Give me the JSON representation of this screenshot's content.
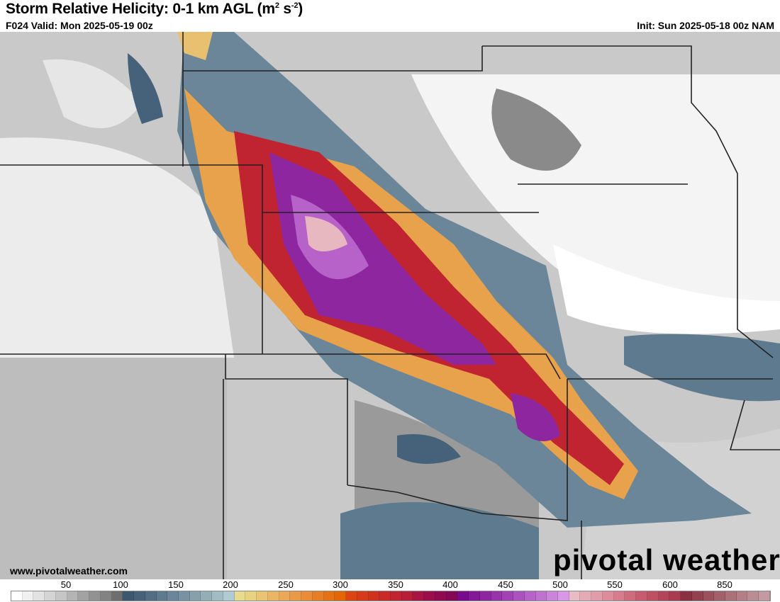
{
  "header": {
    "title": "Storm Relative Helicity: 0-1 km AGL (m",
    "title_sup1": "2",
    "title_mid": " s",
    "title_sup2": "-2",
    "title_end": ")",
    "valid": "F024 Valid: Mon 2025-05-19 00z",
    "init": "Init: Sun 2025-05-18 00z NAM"
  },
  "footer": {
    "url": "www.pivotalweather.com",
    "logo_text": "pivotal weather"
  },
  "colorbar": {
    "tick_labels": [
      "50",
      "100",
      "150",
      "200",
      "250",
      "300",
      "350",
      "400",
      "450",
      "500",
      "550",
      "600",
      "850"
    ],
    "colors": [
      "#ffffff",
      "#f0f0f0",
      "#e2e2e2",
      "#d4d4d4",
      "#c6c6c6",
      "#b4b4b4",
      "#a2a2a2",
      "#929292",
      "#828282",
      "#6e6e6e",
      "#3c5870",
      "#46627a",
      "#526e84",
      "#5e7a8e",
      "#6a8698",
      "#7892a2",
      "#86a0ac",
      "#94aeb8",
      "#a2bcc4",
      "#b0ccd2",
      "#e8dc8c",
      "#e8d280",
      "#eac472",
      "#eab666",
      "#eaa858",
      "#e89a48",
      "#e88c38",
      "#e67e26",
      "#e47214",
      "#e26608",
      "#dc4412",
      "#d63a1a",
      "#d03220",
      "#c82a28",
      "#c02430",
      "#b81e38",
      "#a81444",
      "#9c0e4a",
      "#900a50",
      "#840856",
      "#7a0a8c",
      "#841896",
      "#8e26a0",
      "#9834aa",
      "#a242b4",
      "#ac52be",
      "#b662c8",
      "#c072d0",
      "#ca84da",
      "#d898e6",
      "#e8bcc4",
      "#e4aab6",
      "#e09ca8",
      "#dc8c9a",
      "#d67c8c",
      "#ce6c7e",
      "#c65c70",
      "#be5064",
      "#b4445a",
      "#aa3a50",
      "#8a3040",
      "#94404e",
      "#9c505c",
      "#a4606a",
      "#ac7078",
      "#b47e86",
      "#bc8c94",
      "#c49aa2"
    ]
  }
}
